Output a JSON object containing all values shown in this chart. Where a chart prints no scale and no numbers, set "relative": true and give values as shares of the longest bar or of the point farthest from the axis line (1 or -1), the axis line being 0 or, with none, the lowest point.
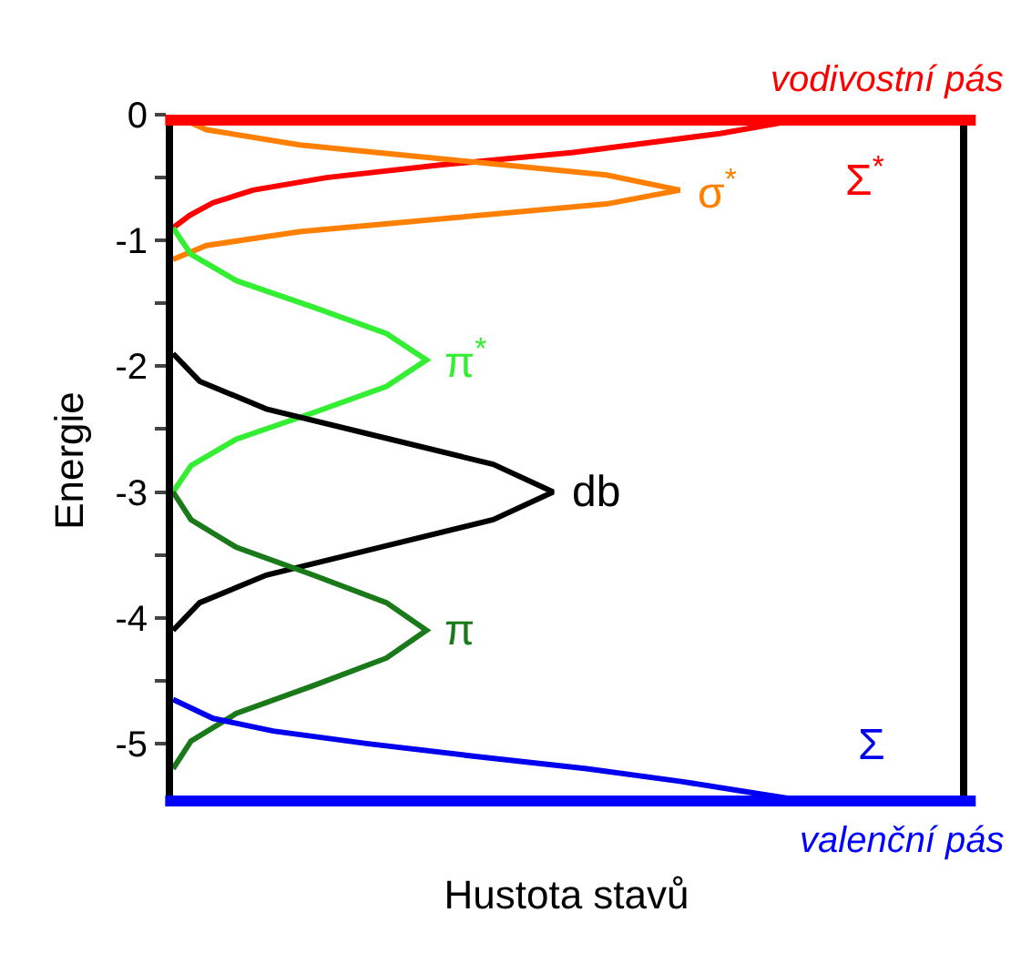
{
  "chart_data": {
    "type": "line",
    "relative": true,
    "orientation": "horizontal",
    "xlabel": "Hustota stavů",
    "ylabel": "Energie",
    "tick_labels": "y",
    "grid": false,
    "legend": false,
    "marker": "none",
    "line_style": "solid",
    "ylim": [
      -5.5,
      0
    ],
    "yticks": [
      {
        "value": 0,
        "label": "0"
      },
      {
        "value": -0.5,
        "label": null
      },
      {
        "value": -1,
        "label": "-1"
      },
      {
        "value": -1.5,
        "label": null
      },
      {
        "value": -2,
        "label": "-2"
      },
      {
        "value": -2.5,
        "label": null
      },
      {
        "value": -3,
        "label": "-3"
      },
      {
        "value": -3.5,
        "label": null
      },
      {
        "value": -4,
        "label": "-4"
      },
      {
        "value": -4.5,
        "label": null
      },
      {
        "value": -5,
        "label": "-5"
      }
    ],
    "series": [
      {
        "name": "Σ$^{*}$",
        "color": "#ff0000",
        "values": [
          0,
          0.025,
          0.06,
          0.12,
          0.23,
          0.4,
          0.6,
          0.82,
          0.98
        ],
        "x": [
          -0.9,
          -0.8,
          -0.7,
          -0.6,
          -0.5,
          -0.4,
          -0.3,
          -0.15,
          0
        ]
      },
      {
        "name": "σ$^{*}$",
        "color": "#ff8000",
        "values": [
          0,
          0.05,
          0.19,
          0.42,
          0.65,
          0.76,
          0.65,
          0.42,
          0.19,
          0.05,
          0
        ],
        "x": [
          0,
          -0.12,
          -0.24,
          -0.36,
          -0.48,
          -0.6,
          -0.71,
          -0.82,
          -0.93,
          -1.04,
          -1.15
        ]
      },
      {
        "name": "π$^{*}$",
        "color": "#33ee33",
        "values": [
          0,
          0.027,
          0.095,
          0.21,
          0.32,
          0.38,
          0.32,
          0.21,
          0.095,
          0.027,
          0
        ],
        "x": [
          -0.9,
          -1.11,
          -1.32,
          -1.53,
          -1.74,
          -1.95,
          -2.16,
          -2.37,
          -2.58,
          -2.79,
          -3.0
        ]
      },
      {
        "name": "db",
        "color": "#000000",
        "values": [
          0,
          0.04,
          0.14,
          0.31,
          0.48,
          0.57,
          0.48,
          0.31,
          0.14,
          0.04,
          0
        ],
        "x": [
          -1.9,
          -2.12,
          -2.34,
          -2.56,
          -2.78,
          -3,
          -3.22,
          -3.44,
          -3.66,
          -3.88,
          -4.1
        ]
      },
      {
        "name": "π",
        "color": "#1a7a1a",
        "values": [
          0,
          0.027,
          0.095,
          0.21,
          0.32,
          0.38,
          0.32,
          0.21,
          0.095,
          0.027,
          0
        ],
        "x": [
          -3.0,
          -3.22,
          -3.44,
          -3.66,
          -3.88,
          -4.1,
          -4.32,
          -4.54,
          -4.76,
          -4.98,
          -5.2
        ]
      },
      {
        "name": "Σ",
        "color": "#0000ee",
        "values": [
          0,
          0.06,
          0.15,
          0.29,
          0.45,
          0.62,
          0.76,
          0.88,
          1
        ],
        "x": [
          -4.65,
          -4.8,
          -4.9,
          -5.0,
          -5.1,
          -5.2,
          -5.3,
          -5.4,
          -5.5
        ]
      }
    ],
    "ref_lines": [
      {
        "axis": "y",
        "value": 0,
        "label": "vodivostní pás",
        "color": "#ff0000"
      },
      {
        "axis": "y",
        "value": -5.5,
        "label": "valenční pás",
        "color": "#0000ff"
      }
    ]
  }
}
